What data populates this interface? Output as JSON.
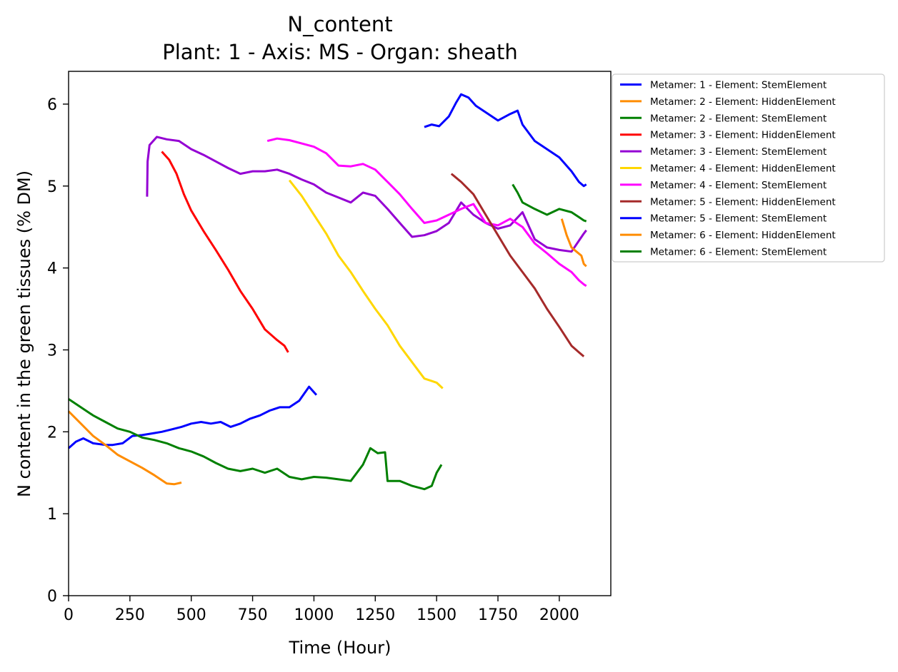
{
  "chart_data": {
    "type": "line",
    "title": "N_content",
    "subtitle": "Plant: 1 - Axis: MS - Organ: sheath",
    "xlabel": "Time (Hour)",
    "ylabel": "N content in the green tissues (% DM)",
    "xlim": [
      0,
      2210
    ],
    "ylim": [
      0,
      6.4
    ],
    "xticks": [
      0,
      250,
      500,
      750,
      1000,
      1250,
      1500,
      1750,
      2000
    ],
    "yticks": [
      0,
      1,
      2,
      3,
      4,
      5,
      6
    ],
    "grid": false,
    "legend_position": "outside-right-top",
    "series": [
      {
        "name": "Metamer: 1 - Element: StemElement",
        "color": "#0000ff",
        "x": [
          0,
          30,
          60,
          100,
          150,
          180,
          220,
          260,
          300,
          340,
          380,
          420,
          460,
          500,
          540,
          580,
          620,
          660,
          700,
          740,
          780,
          820,
          860,
          900,
          940,
          980,
          1010
        ],
        "y": [
          1.8,
          1.88,
          1.92,
          1.86,
          1.84,
          1.84,
          1.86,
          1.95,
          1.96,
          1.98,
          2.0,
          2.03,
          2.06,
          2.1,
          2.12,
          2.1,
          2.12,
          2.06,
          2.1,
          2.16,
          2.2,
          2.26,
          2.3,
          2.3,
          2.38,
          2.55,
          2.45
        ]
      },
      {
        "name": "Metamer: 2 - Element: HiddenElement",
        "color": "#ff8c00",
        "x": [
          0,
          50,
          100,
          150,
          200,
          250,
          300,
          350,
          400,
          430,
          460
        ],
        "y": [
          2.25,
          2.1,
          1.95,
          1.84,
          1.72,
          1.64,
          1.56,
          1.47,
          1.37,
          1.36,
          1.38
        ]
      },
      {
        "name": "Metamer: 2 - Element: StemElement",
        "color": "#008000",
        "x": [
          0,
          50,
          100,
          150,
          200,
          250,
          300,
          350,
          400,
          450,
          500,
          550,
          600,
          650,
          700,
          750,
          800,
          850,
          900,
          950,
          1000,
          1050,
          1100,
          1150,
          1200,
          1230,
          1260,
          1290,
          1300,
          1350,
          1400,
          1450,
          1480,
          1500,
          1520
        ],
        "y": [
          2.4,
          2.3,
          2.2,
          2.12,
          2.04,
          2.0,
          1.93,
          1.9,
          1.86,
          1.8,
          1.76,
          1.7,
          1.62,
          1.55,
          1.52,
          1.55,
          1.5,
          1.55,
          1.45,
          1.42,
          1.45,
          1.44,
          1.42,
          1.4,
          1.6,
          1.8,
          1.74,
          1.75,
          1.4,
          1.4,
          1.34,
          1.3,
          1.34,
          1.5,
          1.6
        ]
      },
      {
        "name": "Metamer: 3 - Element: HiddenElement",
        "color": "#ff0000",
        "x": [
          380,
          410,
          440,
          470,
          500,
          550,
          600,
          650,
          700,
          750,
          800,
          850,
          880,
          895
        ],
        "y": [
          5.42,
          5.32,
          5.15,
          4.9,
          4.7,
          4.45,
          4.22,
          3.98,
          3.72,
          3.5,
          3.25,
          3.12,
          3.05,
          2.97
        ]
      },
      {
        "name": "Metamer: 3 - Element: StemElement",
        "color": "#9400d3",
        "x": [
          320,
          322,
          330,
          360,
          400,
          450,
          500,
          550,
          600,
          650,
          700,
          750,
          800,
          850,
          900,
          950,
          1000,
          1050,
          1100,
          1150,
          1200,
          1250,
          1300,
          1350,
          1400,
          1450,
          1500,
          1550,
          1600,
          1650,
          1700,
          1750,
          1800,
          1850,
          1900,
          1950,
          2000,
          2050,
          2100,
          2110
        ],
        "y": [
          4.87,
          5.3,
          5.5,
          5.6,
          5.57,
          5.55,
          5.45,
          5.38,
          5.3,
          5.22,
          5.15,
          5.18,
          5.18,
          5.2,
          5.15,
          5.08,
          5.02,
          4.92,
          4.86,
          4.8,
          4.92,
          4.88,
          4.72,
          4.55,
          4.38,
          4.4,
          4.45,
          4.55,
          4.8,
          4.65,
          4.55,
          4.48,
          4.52,
          4.68,
          4.35,
          4.25,
          4.22,
          4.2,
          4.42,
          4.46
        ]
      },
      {
        "name": "Metamer: 4 - Element: HiddenElement",
        "color": "#ffd700",
        "x": [
          900,
          950,
          1000,
          1050,
          1100,
          1150,
          1200,
          1250,
          1300,
          1350,
          1400,
          1450,
          1480,
          1500,
          1525
        ],
        "y": [
          5.07,
          4.88,
          4.65,
          4.42,
          4.15,
          3.95,
          3.72,
          3.5,
          3.3,
          3.05,
          2.85,
          2.65,
          2.62,
          2.6,
          2.53
        ]
      },
      {
        "name": "Metamer: 4 - Element: StemElement",
        "color": "#ff00ff",
        "x": [
          810,
          850,
          900,
          950,
          1000,
          1050,
          1100,
          1150,
          1200,
          1250,
          1300,
          1350,
          1400,
          1450,
          1500,
          1550,
          1600,
          1650,
          1700,
          1750,
          1800,
          1850,
          1900,
          1950,
          2000,
          2050,
          2080,
          2100,
          2110
        ],
        "y": [
          5.55,
          5.58,
          5.56,
          5.52,
          5.48,
          5.4,
          5.25,
          5.24,
          5.27,
          5.2,
          5.05,
          4.9,
          4.72,
          4.55,
          4.58,
          4.65,
          4.72,
          4.78,
          4.55,
          4.52,
          4.6,
          4.5,
          4.3,
          4.18,
          4.05,
          3.95,
          3.85,
          3.8,
          3.78
        ]
      },
      {
        "name": "Metamer: 5 - Element: HiddenElement",
        "color": "#a52a2a",
        "x": [
          1560,
          1600,
          1650,
          1700,
          1750,
          1800,
          1850,
          1900,
          1950,
          2000,
          2050,
          2080,
          2100
        ],
        "y": [
          5.15,
          5.05,
          4.9,
          4.65,
          4.4,
          4.15,
          3.95,
          3.75,
          3.5,
          3.28,
          3.05,
          2.97,
          2.92
        ]
      },
      {
        "name": "Metamer: 5 - Element: StemElement",
        "color": "#0000ff",
        "x": [
          1450,
          1480,
          1510,
          1550,
          1580,
          1600,
          1630,
          1660,
          1700,
          1750,
          1800,
          1830,
          1850,
          1900,
          1950,
          2000,
          2050,
          2080,
          2100,
          2110
        ],
        "y": [
          5.72,
          5.75,
          5.73,
          5.85,
          6.02,
          6.12,
          6.08,
          5.98,
          5.9,
          5.8,
          5.88,
          5.92,
          5.75,
          5.55,
          5.45,
          5.35,
          5.18,
          5.05,
          5.0,
          5.02
        ]
      },
      {
        "name": "Metamer: 6 - Element: HiddenElement",
        "color": "#ff8c00",
        "x": [
          2010,
          2030,
          2050,
          2070,
          2090,
          2100,
          2110
        ],
        "y": [
          4.6,
          4.4,
          4.25,
          4.2,
          4.15,
          4.05,
          4.02
        ]
      },
      {
        "name": "Metamer: 6 - Element: StemElement",
        "color": "#008000",
        "x": [
          1810,
          1830,
          1850,
          1900,
          1950,
          2000,
          2050,
          2080,
          2100,
          2110
        ],
        "y": [
          5.02,
          4.92,
          4.8,
          4.72,
          4.65,
          4.72,
          4.68,
          4.62,
          4.58,
          4.57
        ]
      }
    ]
  }
}
